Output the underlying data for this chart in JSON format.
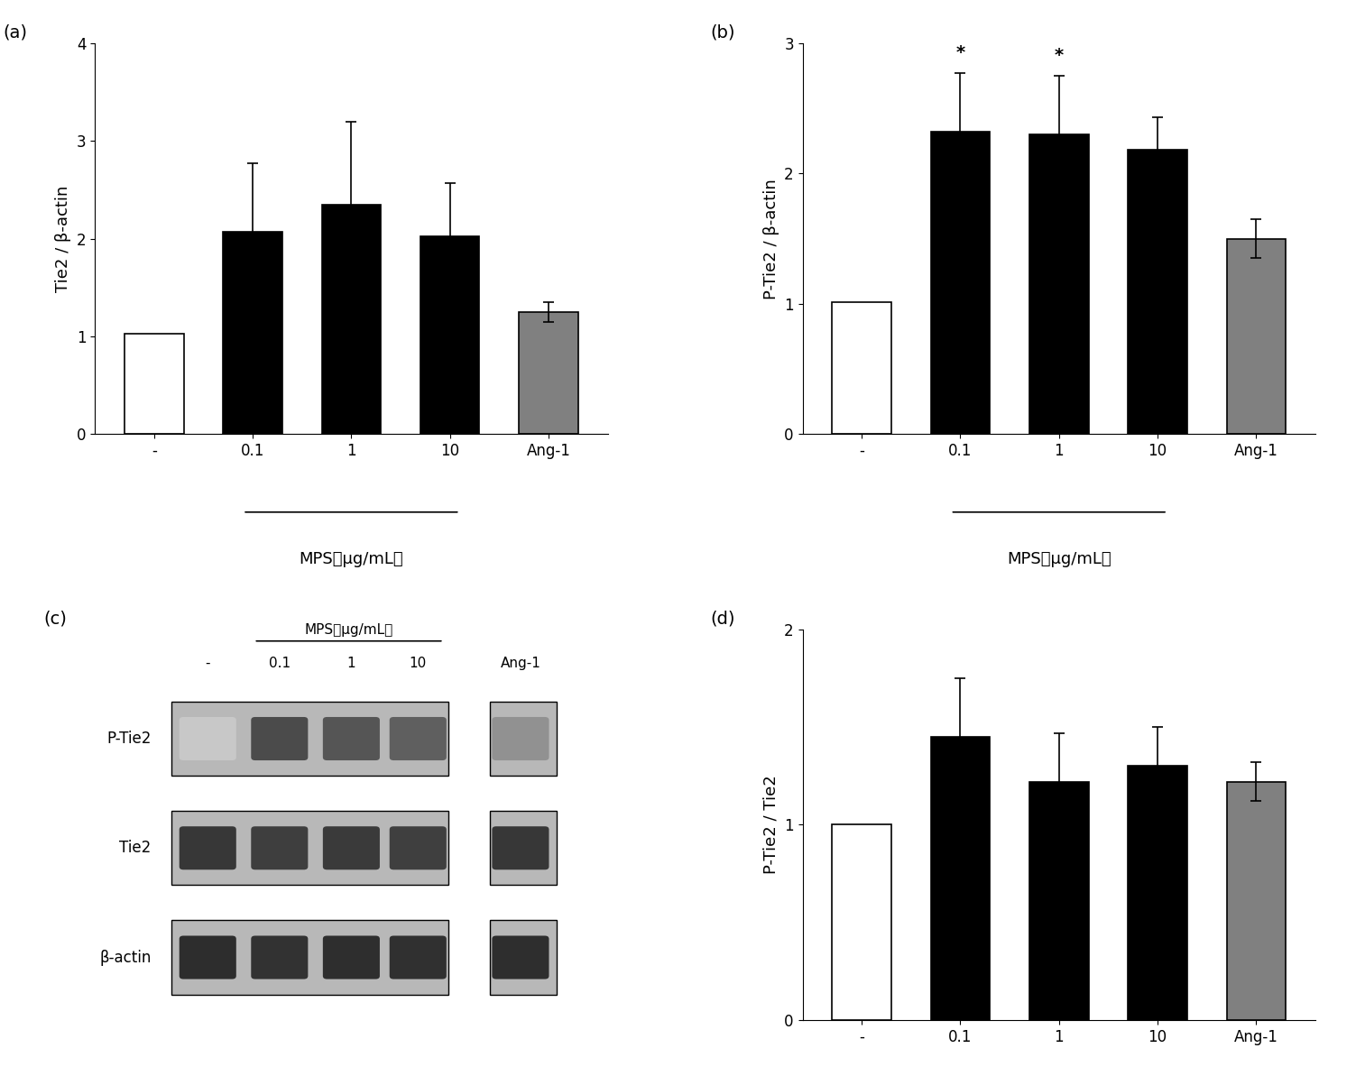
{
  "panel_a": {
    "label": "(a)",
    "ylabel": "Tie2 / β-actin",
    "ylim": [
      0,
      4
    ],
    "yticks": [
      0,
      1,
      2,
      3,
      4
    ],
    "categories": [
      "-",
      "0.1",
      "1",
      "10",
      "Ang-1"
    ],
    "values": [
      1.03,
      2.07,
      2.35,
      2.02,
      1.25
    ],
    "errors": [
      0.0,
      0.7,
      0.85,
      0.55,
      0.1
    ],
    "colors": [
      "white",
      "black",
      "black",
      "black",
      "#808080"
    ],
    "significance": [
      "",
      "",
      "",
      "",
      ""
    ],
    "xlabel_main": "MPS（μg/mL）",
    "xlabel_span": [
      1,
      3
    ]
  },
  "panel_b": {
    "label": "(b)",
    "ylabel": "P-Tie2 / β-actin",
    "ylim": [
      0,
      3
    ],
    "yticks": [
      0,
      1,
      2,
      3
    ],
    "categories": [
      "-",
      "0.1",
      "1",
      "10",
      "Ang-1"
    ],
    "values": [
      1.01,
      2.32,
      2.3,
      2.18,
      1.5
    ],
    "errors": [
      0.0,
      0.45,
      0.45,
      0.25,
      0.15
    ],
    "colors": [
      "white",
      "black",
      "black",
      "black",
      "#808080"
    ],
    "significance": [
      "",
      "*",
      "*",
      "",
      ""
    ],
    "xlabel_main": "MPS（μg/mL）",
    "xlabel_span": [
      1,
      3
    ]
  },
  "panel_d": {
    "label": "(d)",
    "ylabel": "P-Tie2 / Tie2",
    "ylim": [
      0,
      2
    ],
    "yticks": [
      0,
      1,
      2
    ],
    "categories": [
      "-",
      "0.1",
      "1",
      "10",
      "Ang-1"
    ],
    "values": [
      1.0,
      1.45,
      1.22,
      1.3,
      1.22
    ],
    "errors": [
      0.0,
      0.3,
      0.25,
      0.2,
      0.1
    ],
    "colors": [
      "white",
      "black",
      "black",
      "black",
      "#808080"
    ],
    "significance": [
      "",
      "",
      "",
      "",
      ""
    ],
    "xlabel_main": "MPS（μg/mL）",
    "xlabel_span": [
      1,
      3
    ]
  },
  "panel_c": {
    "label": "(c)",
    "row_labels": [
      "P-Tie2",
      "Tie2",
      "β-actin"
    ],
    "col_labels": [
      "-",
      "0.1",
      "1",
      "10",
      "Ang-1"
    ],
    "xlabel_main": "MPS（μg/mL）",
    "band_intensities": {
      "P-Tie2": [
        200,
        75,
        85,
        95,
        145
      ],
      "Tie2": [
        55,
        62,
        58,
        63,
        55
      ],
      "b-actin": [
        45,
        50,
        46,
        48,
        46
      ]
    }
  },
  "bar_width": 0.6,
  "edge_color": "black",
  "error_color": "black",
  "capsize": 4,
  "fontsize_label": 13,
  "fontsize_tick": 12,
  "fontsize_panel": 14,
  "fontsize_sig": 14,
  "background_color": "white"
}
